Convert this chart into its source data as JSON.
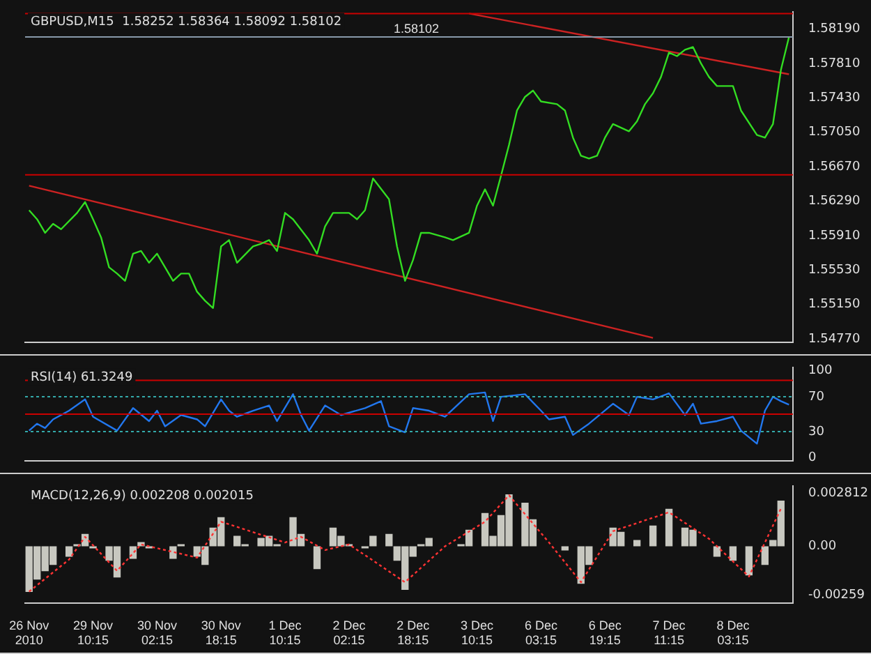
{
  "chart_data": [
    {
      "type": "line",
      "title": "GBPUSD,M15  1.58252 1.58364 1.58092 1.58102",
      "categories": [
        null,
        null,
        null,
        null,
        null,
        null,
        null,
        null,
        null,
        null,
        null,
        null,
        null,
        null,
        null,
        null,
        null,
        null,
        null,
        null,
        null,
        null,
        null,
        null,
        null,
        null,
        null,
        null,
        null,
        null,
        null,
        null,
        null,
        null,
        null,
        null,
        null,
        null,
        null,
        null,
        null,
        null,
        null,
        null,
        null,
        null,
        null,
        null,
        null,
        null,
        null,
        null,
        null,
        null,
        null,
        null,
        null,
        null,
        null,
        null,
        null,
        null,
        null,
        null,
        null,
        null,
        null,
        null,
        null,
        null,
        null,
        null,
        null,
        null,
        null,
        null,
        null,
        null,
        null,
        null,
        null,
        null,
        null,
        null,
        null,
        null,
        null,
        null,
        null,
        null,
        null,
        null,
        null,
        null,
        null,
        null
      ],
      "tick_labels": "y",
      "ylim": [
        1.5473,
        1.5838
      ],
      "yticks": [
        {
          "value": 1.5819,
          "label": "1.58190"
        },
        {
          "value": 1.5781,
          "label": "1.57810"
        },
        {
          "value": 1.5743,
          "label": "1.57430"
        },
        {
          "value": 1.5705,
          "label": "1.57050"
        },
        {
          "value": 1.5667,
          "label": "1.56670"
        },
        {
          "value": 1.5629,
          "label": "1.56290"
        },
        {
          "value": 1.5591,
          "label": "1.55910"
        },
        {
          "value": 1.5553,
          "label": "1.55530"
        },
        {
          "value": 1.5515,
          "label": "1.55150"
        },
        {
          "value": 1.5477,
          "label": "1.54770"
        }
      ],
      "grid": false,
      "legend": false,
      "marker": "none",
      "series": [
        {
          "color": "#33dd22",
          "values": [
            1.5619,
            1.5609,
            1.5594,
            1.5604,
            1.5598,
            null,
            1.5616,
            1.5628,
            1.5609,
            1.5589,
            1.5556,
            1.5549,
            1.5541,
            1.5571,
            1.5574,
            1.5561,
            1.5571,
            1.5556,
            1.5541,
            1.5549,
            1.5549,
            1.5529,
            1.5519,
            1.5511,
            1.5579,
            1.5586,
            1.5561,
            null,
            1.5579,
            1.5582,
            1.5586,
            1.5574,
            1.5616,
            1.5609,
            null,
            1.5586,
            1.5571,
            1.5601,
            1.5616,
            null,
            1.5616,
            1.5609,
            1.5619,
            1.5654,
            null,
            1.5631,
            1.5579,
            1.5541,
            1.5564,
            1.5594,
            1.5594,
            null,
            1.5589,
            1.5586,
            null,
            1.5594,
            1.5624,
            1.5642,
            1.5624,
            1.5657,
            1.5691,
            1.5729,
            1.5744,
            1.5751,
            1.5739,
            null,
            1.5736,
            1.5729,
            1.5699,
            1.5679,
            1.5676,
            1.5679,
            1.5699,
            1.5714,
            null,
            1.5706,
            1.5717,
            1.5736,
            1.5748,
            1.5766,
            1.5793,
            1.5789,
            1.5796,
            1.5799,
            1.5781,
            1.5766,
            1.5756,
            null,
            1.5756,
            1.5729,
            null,
            1.5702,
            1.5699,
            1.5714,
            1.5774,
            1.581
          ]
        },
        {
          "type": "line",
          "color": "#cc2222",
          "values": [
            1.5646,
            null,
            null,
            null,
            null,
            null,
            null,
            null,
            null,
            null,
            null,
            null,
            null,
            null,
            null,
            null,
            null,
            null,
            null,
            null,
            null,
            null,
            null,
            null,
            null,
            null,
            null,
            null,
            null,
            null,
            null,
            null,
            null,
            null,
            null,
            null,
            null,
            null,
            null,
            null,
            null,
            null,
            null,
            null,
            null,
            null,
            null,
            null,
            null,
            null,
            null,
            null,
            null,
            null,
            null,
            null,
            null,
            null,
            null,
            null,
            null,
            null,
            null,
            null,
            null,
            null,
            null,
            null,
            null,
            null,
            null,
            null,
            null,
            null,
            null,
            null,
            null,
            null,
            1.5478,
            null,
            null,
            null,
            null,
            null,
            null,
            null,
            null,
            null,
            null,
            null,
            null,
            null,
            null,
            null,
            null,
            null
          ]
        },
        {
          "type": "line",
          "color": "#cc2222",
          "values": [
            null,
            null,
            null,
            null,
            null,
            null,
            null,
            null,
            null,
            null,
            null,
            null,
            null,
            null,
            null,
            null,
            null,
            null,
            null,
            null,
            null,
            null,
            null,
            null,
            null,
            null,
            null,
            null,
            null,
            null,
            null,
            null,
            null,
            null,
            null,
            null,
            null,
            null,
            null,
            null,
            null,
            null,
            null,
            null,
            null,
            null,
            null,
            null,
            null,
            null,
            null,
            null,
            null,
            null,
            null,
            1.5836,
            null,
            null,
            null,
            null,
            null,
            null,
            null,
            null,
            null,
            null,
            null,
            null,
            null,
            null,
            null,
            null,
            null,
            null,
            null,
            null,
            null,
            null,
            null,
            null,
            null,
            null,
            null,
            null,
            null,
            null,
            null,
            null,
            null,
            null,
            null,
            null,
            null,
            null,
            null,
            1.5769
          ]
        }
      ],
      "ref_lines": [
        {
          "axis": "y",
          "value": 1.5836,
          "color": "#cc0000"
        },
        {
          "axis": "y",
          "value": 1.58102,
          "label": "1.58102",
          "color": "#8899aa"
        },
        {
          "axis": "y",
          "value": 1.5658,
          "color": "#cc0000"
        }
      ]
    },
    {
      "type": "line",
      "title": "RSI(14) 61.3249",
      "categories": [
        null,
        null,
        null,
        null,
        null,
        null,
        null,
        null,
        null,
        null,
        null,
        null,
        null,
        null,
        null,
        null,
        null,
        null,
        null,
        null,
        null,
        null,
        null,
        null,
        null,
        null,
        null,
        null,
        null,
        null,
        null,
        null,
        null,
        null,
        null,
        null,
        null,
        null,
        null,
        null,
        null,
        null,
        null,
        null,
        null,
        null,
        null,
        null,
        null,
        null,
        null,
        null,
        null,
        null,
        null,
        null,
        null,
        null,
        null,
        null,
        null,
        null,
        null,
        null,
        null,
        null,
        null,
        null,
        null,
        null,
        null,
        null,
        null,
        null,
        null,
        null,
        null,
        null,
        null,
        null,
        null,
        null,
        null,
        null,
        null,
        null,
        null,
        null,
        null,
        null,
        null,
        null,
        null,
        null,
        null,
        null
      ],
      "tick_labels": "y",
      "ylim": [
        -4,
        104
      ],
      "yticks": [
        0,
        30,
        70,
        100
      ],
      "grid": false,
      "legend": false,
      "marker": "none",
      "series": [
        {
          "color": "#2277ee",
          "values": [
            31,
            39,
            34,
            44,
            null,
            54,
            null,
            67,
            47,
            null,
            null,
            31,
            null,
            57,
            null,
            42,
            54,
            36,
            null,
            49,
            null,
            44,
            36,
            null,
            67,
            54,
            47,
            null,
            54,
            null,
            60,
            42,
            null,
            73,
            49,
            31,
            null,
            60,
            null,
            49,
            null,
            null,
            57,
            null,
            65,
            36,
            null,
            29,
            57,
            null,
            54,
            null,
            47,
            null,
            null,
            73,
            null,
            75,
            42,
            70,
            null,
            null,
            73,
            null,
            54,
            44,
            null,
            47,
            26,
            null,
            39,
            null,
            null,
            62,
            null,
            49,
            70,
            null,
            67,
            null,
            74,
            null,
            49,
            62,
            39,
            null,
            42,
            null,
            47,
            31,
            null,
            16,
            54,
            70,
            65,
            61
          ]
        }
      ],
      "ref_lines": [
        {
          "axis": "y",
          "value": 89,
          "color": "#cc0000"
        },
        {
          "axis": "y",
          "value": 70,
          "color": "#33aaaa",
          "line_style": "dotted"
        },
        {
          "axis": "y",
          "value": 50,
          "color": "#cc0000"
        },
        {
          "axis": "y",
          "value": 30,
          "color": "#33aaaa",
          "line_style": "dotted"
        }
      ]
    },
    {
      "type": "bar",
      "title": "MACD(12,26,9) 0.002208 0.002015",
      "categories": [
        "26 Nov 2010",
        null,
        null,
        null,
        null,
        null,
        null,
        null,
        "29 Nov 10:15",
        null,
        null,
        null,
        null,
        null,
        null,
        null,
        "30 Nov 02:15",
        null,
        null,
        null,
        null,
        null,
        null,
        null,
        "30 Nov 18:15",
        null,
        null,
        null,
        null,
        null,
        null,
        null,
        "1 Dec 10:15",
        null,
        null,
        null,
        null,
        null,
        null,
        null,
        "2 Dec 02:15",
        null,
        null,
        null,
        null,
        null,
        null,
        null,
        "2 Dec 18:15",
        null,
        null,
        null,
        null,
        null,
        null,
        null,
        "3 Dec 10:15",
        null,
        null,
        null,
        null,
        null,
        null,
        null,
        "6 Dec 03:15",
        null,
        null,
        null,
        null,
        null,
        null,
        null,
        "6 Dec 19:15",
        null,
        null,
        null,
        null,
        null,
        null,
        null,
        "7 Dec 11:15",
        null,
        null,
        null,
        null,
        null,
        null,
        null,
        "8 Dec 03:15",
        null,
        null,
        null,
        null,
        null,
        null,
        null
      ],
      "ylim": [
        -0.003,
        0.0032
      ],
      "yticks": [
        0.002812,
        {
          "value": 0,
          "label": "0.00"
        },
        -0.00259
      ],
      "grid": false,
      "legend": false,
      "marker": "none",
      "series": [
        {
          "color": "#c8c8c0",
          "values": [
            -0.00242,
            -0.00176,
            -0.00132,
            -0.00099,
            null,
            -0.00055,
            0.00011,
            0.00066,
            -0.00011,
            null,
            -0.00077,
            -0.00165,
            null,
            -0.00066,
            0.00022,
            -0.00011,
            null,
            0,
            -0.00066,
            0.00011,
            null,
            -0.00055,
            -0.00099,
            0.00099,
            0.00154,
            null,
            0.00055,
            0.00011,
            null,
            0.00044,
            0.00055,
            0.00011,
            null,
            0.00154,
            0.00066,
            null,
            -0.00121,
            0,
            0.00099,
            0.00055,
            0.00011,
            null,
            -0.00011,
            0.00055,
            null,
            0.00066,
            -0.00077,
            -0.00231,
            -0.00055,
            0.00011,
            0.00044,
            null,
            0,
            null,
            0.00011,
            0.00088,
            null,
            0.00176,
            0.00055,
            0.00165,
            0.00275,
            null,
            0.00231,
            0.00143,
            null,
            0,
            null,
            -0.00022,
            null,
            -0.00198,
            -0.00099,
            null,
            null,
            0.00099,
            0.00077,
            null,
            0.00033,
            null,
            0.0011,
            null,
            0.00198,
            null,
            0.00099,
            0.00088,
            null,
            0,
            -0.00055,
            null,
            -0.00077,
            null,
            -0.00154,
            null,
            -0.00099,
            0.00033,
            0.00242,
            null
          ]
        },
        {
          "type": "line",
          "color": "#ff3333",
          "line_style": "dotted",
          "values": [
            -0.0024,
            null,
            null,
            null,
            null,
            -0.0007,
            null,
            0.0005,
            null,
            null,
            null,
            -0.0013,
            null,
            null,
            0.0001,
            null,
            null,
            null,
            null,
            null,
            null,
            -0.0006,
            null,
            null,
            0.0013,
            null,
            null,
            null,
            null,
            null,
            null,
            null,
            0.0002,
            null,
            0.0005,
            null,
            null,
            -0.0002,
            null,
            null,
            0.0001,
            null,
            null,
            null,
            null,
            null,
            null,
            -0.0019,
            null,
            null,
            null,
            null,
            0,
            null,
            null,
            null,
            null,
            0.0013,
            null,
            null,
            0.0027,
            null,
            null,
            null,
            null,
            0.0002,
            null,
            null,
            null,
            -0.0019,
            null,
            null,
            null,
            0.0008,
            null,
            null,
            null,
            null,
            null,
            null,
            0.0018,
            null,
            null,
            null,
            null,
            0.0004,
            null,
            null,
            null,
            null,
            -0.0016,
            null,
            null,
            null,
            0.002,
            null
          ]
        }
      ]
    }
  ]
}
